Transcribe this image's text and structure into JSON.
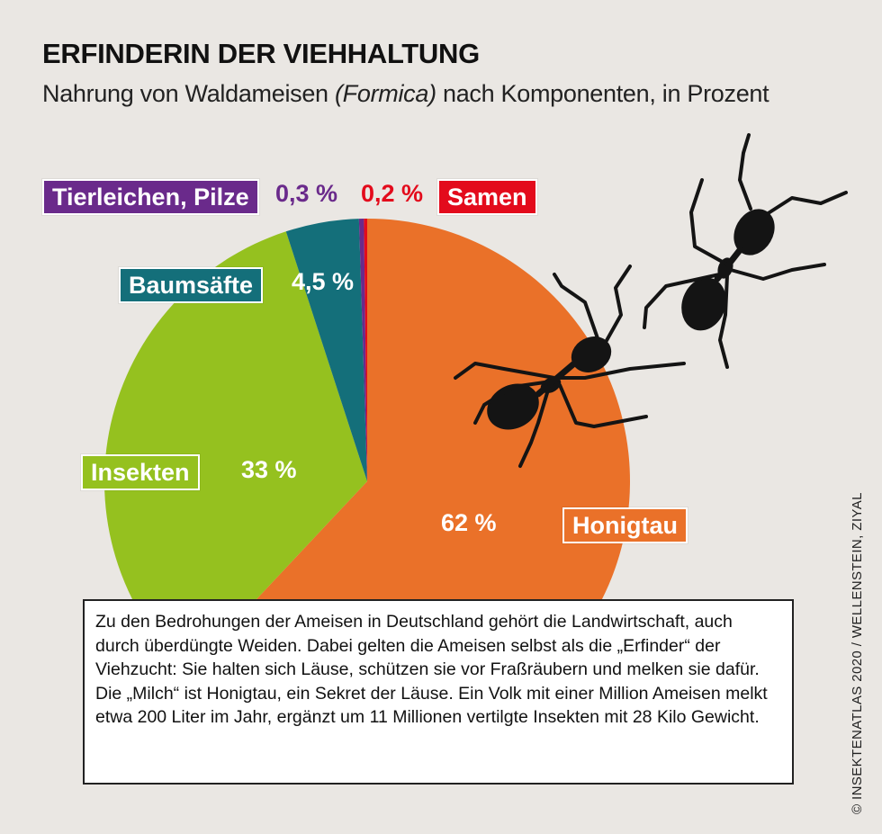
{
  "title": "ERFINDERIN DER VIEHHALTUNG",
  "subtitle": {
    "before": "Nahrung von Waldameisen ",
    "italic": "(Formica)",
    "after": " nach Komponenten, in Prozent"
  },
  "chart_data": {
    "type": "pie",
    "title": "ERFINDERIN DER VIEHHALTUNG",
    "subtitle": "Nahrung von Waldameisen (Formica) nach Komponenten, in Prozent",
    "unit": "Prozent",
    "slices": [
      {
        "name": "Honigtau",
        "value": 62,
        "value_label": "62 %",
        "color": "#ea7129"
      },
      {
        "name": "Insekten",
        "value": 33,
        "value_label": "33 %",
        "color": "#95c11f"
      },
      {
        "name": "Baumsäfte",
        "value": 4.5,
        "value_label": "4,5 %",
        "color": "#146f7a"
      },
      {
        "name": "Tierleichen, Pilze",
        "value": 0.3,
        "value_label": "0,3 %",
        "color": "#6a2a8b"
      },
      {
        "name": "Samen",
        "value": 0.2,
        "value_label": "0,2 %",
        "color": "#e30b1c"
      }
    ]
  },
  "body_text": "Zu den Bedrohungen der Ameisen in Deutschland gehört die Landwirtschaft, auch durch überdüngte Weiden. Dabei gelten die Ameisen selbst als die „Erfinder“ der Viehzucht: Sie halten sich Läuse, schützen sie vor Fraßräubern und melken sie dafür. Die „Milch“ ist Honigtau, ein Sekret der Läuse. Ein Volk mit einer Million Ameisen melkt etwa 200 Liter im Jahr, ergänzt um 11 Millionen vertilgte Insekten mit 28 Kilo Gewicht.",
  "credit": "© INSEKTENATLAS 2020 / WELLENSTEIN, ZIYAL",
  "icons": [
    "ant-icon",
    "ant-icon"
  ],
  "colors": {
    "background": "#eae7e3",
    "text": "#111111"
  }
}
